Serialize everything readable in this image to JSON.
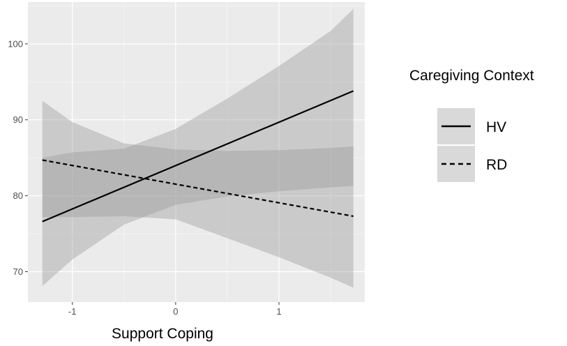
{
  "chart_data": {
    "type": "line",
    "xlabel": "Support Coping",
    "ylabel": "",
    "xlim": [
      -1.43,
      1.83
    ],
    "ylim": [
      66.0,
      105.5
    ],
    "x_ticks": [
      -1,
      0,
      1
    ],
    "y_ticks": [
      70,
      80,
      90,
      100
    ],
    "x_tick_labels": [
      "-1",
      "0",
      "1"
    ],
    "y_tick_labels": [
      "70",
      "80",
      "90",
      "100"
    ],
    "grid": true,
    "legend": {
      "title": "Caregiving Context",
      "position": "right"
    },
    "series": [
      {
        "name": "HV",
        "line_style": "solid",
        "x": [
          -1.29,
          1.72
        ],
        "y": [
          76.6,
          93.8
        ],
        "ci_x": [
          -1.29,
          -1.0,
          -0.5,
          0.0,
          0.5,
          1.0,
          1.5,
          1.72
        ],
        "ci_lower": [
          68.1,
          71.6,
          76.2,
          78.8,
          79.9,
          80.6,
          81.1,
          81.3
        ],
        "ci_upper": [
          85.0,
          85.7,
          86.2,
          88.8,
          92.8,
          97.1,
          101.7,
          104.6
        ]
      },
      {
        "name": "RD",
        "line_style": "dashed",
        "x": [
          -1.29,
          1.72
        ],
        "y": [
          84.7,
          77.3
        ],
        "ci_x": [
          -1.29,
          -1.0,
          -0.5,
          0.0,
          0.5,
          1.0,
          1.5,
          1.72
        ],
        "ci_lower": [
          77.2,
          77.2,
          77.3,
          76.9,
          74.4,
          71.9,
          69.2,
          67.9
        ],
        "ci_upper": [
          92.5,
          89.7,
          86.9,
          86.1,
          85.9,
          86.0,
          86.3,
          86.5
        ]
      }
    ]
  },
  "colors": {
    "panel_background": "#ebebeb",
    "gridline_major": "#ffffff",
    "ribbon": "#999999",
    "line": "#000000",
    "legend_key_background": "#d9d9d9"
  }
}
